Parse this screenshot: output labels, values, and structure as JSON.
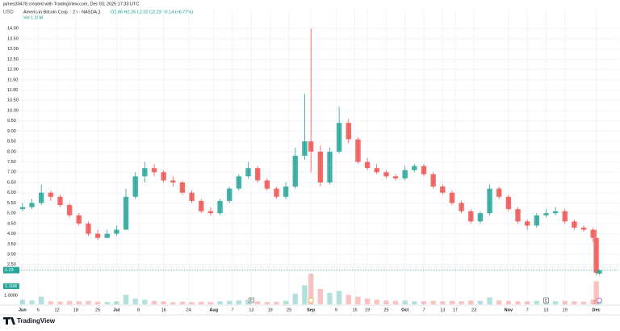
{
  "chart_data": {
    "type": "candlestick",
    "attribution": "james30478 created with TradingView.com, Dec 03, 2025 17:33 UTC",
    "title": "American Bitcoin Corp. · 2h · NASDAQ",
    "ohlc_legend": "O2.06 H2.26 L2.02 C2.23 +0.14 (+6.77%)",
    "volume_legend": "Vol 1.11M",
    "currency": "USD",
    "brand": "TradingView",
    "last_price_label": "2.23",
    "last_volume_label": "1.11M",
    "up_color": "#26a69a",
    "down_color": "#ef5350",
    "grid": true,
    "xlim": [
      -1,
      188
    ],
    "ylim": [
      1.9,
      14.6
    ],
    "vlim": [
      0,
      8
    ],
    "xticks": [
      {
        "value": 0,
        "label": "Jun"
      },
      {
        "value": 5,
        "label": "6"
      },
      {
        "value": 11,
        "label": "12"
      },
      {
        "value": 17,
        "label": "18"
      },
      {
        "value": 24,
        "label": "25"
      },
      {
        "value": 30,
        "label": "Jul"
      },
      {
        "value": 37,
        "label": "8"
      },
      {
        "value": 45,
        "label": "16"
      },
      {
        "value": 53,
        "label": "24"
      },
      {
        "value": 61,
        "label": "Aug"
      },
      {
        "value": 67,
        "label": "7"
      },
      {
        "value": 73,
        "label": "13"
      },
      {
        "value": 79,
        "label": "19"
      },
      {
        "value": 85,
        "label": "25"
      },
      {
        "value": 92,
        "label": "Sep"
      },
      {
        "value": 100,
        "label": "9"
      },
      {
        "value": 106,
        "label": "15"
      },
      {
        "value": 110,
        "label": "19"
      },
      {
        "value": 116,
        "label": "25"
      },
      {
        "value": 122,
        "label": "Oct"
      },
      {
        "value": 128,
        "label": "7"
      },
      {
        "value": 134,
        "label": "13"
      },
      {
        "value": 138,
        "label": "17"
      },
      {
        "value": 144,
        "label": "23"
      },
      {
        "value": 155,
        "label": "Nov"
      },
      {
        "value": 161,
        "label": "7"
      },
      {
        "value": 167,
        "label": "13"
      },
      {
        "value": 173,
        "label": "19"
      },
      {
        "value": 183,
        "label": "Dec"
      }
    ],
    "yticks": [
      {
        "value": 2.5,
        "label": "2.50"
      },
      {
        "value": 3,
        "label": "3.00"
      },
      {
        "value": 3.5,
        "label": "3.50"
      },
      {
        "value": 4,
        "label": "4.00"
      },
      {
        "value": 4.5,
        "label": "4.50"
      },
      {
        "value": 5,
        "label": "5.00"
      },
      {
        "value": 5.5,
        "label": "5.50"
      },
      {
        "value": 6,
        "label": "6.00"
      },
      {
        "value": 6.5,
        "label": "6.50"
      },
      {
        "value": 7,
        "label": "7.00"
      },
      {
        "value": 7.5,
        "label": "7.50"
      },
      {
        "value": 8,
        "label": "8.00"
      },
      {
        "value": 8.5,
        "label": "8.50"
      },
      {
        "value": 9,
        "label": "9.00"
      },
      {
        "value": 9.5,
        "label": "9.50"
      },
      {
        "value": 10,
        "label": "10.00"
      },
      {
        "value": 10.5,
        "label": "10.50"
      },
      {
        "value": 11,
        "label": "11.00"
      },
      {
        "value": 11.5,
        "label": "11.50"
      },
      {
        "value": 12,
        "label": "12.00"
      },
      {
        "value": 12.5,
        "label": "12.50"
      },
      {
        "value": 13,
        "label": "13.00"
      },
      {
        "value": 13.5,
        "label": "13.50"
      },
      {
        "value": 14,
        "label": "14.00"
      }
    ],
    "vticks": [
      {
        "value": 1,
        "label": "1.0000"
      }
    ],
    "events": [
      {
        "x": 73,
        "label": "E"
      },
      {
        "x": 167,
        "label": "E"
      }
    ],
    "x": [
      0,
      3,
      6,
      9,
      12,
      15,
      18,
      21,
      24,
      27,
      30,
      33,
      36,
      39,
      42,
      45,
      48,
      51,
      54,
      57,
      60,
      63,
      66,
      69,
      72,
      75,
      78,
      81,
      84,
      87,
      90,
      92,
      95,
      98,
      101,
      104,
      107,
      110,
      113,
      116,
      119,
      122,
      125,
      128,
      131,
      134,
      137,
      140,
      143,
      146,
      149,
      152,
      155,
      158,
      161,
      164,
      167,
      170,
      173,
      176,
      179,
      182,
      183,
      184
    ],
    "open": [
      5.2,
      5.3,
      5.5,
      6.0,
      5.8,
      5.4,
      4.9,
      4.5,
      4.0,
      3.8,
      4.0,
      4.2,
      5.8,
      6.8,
      7.2,
      7.0,
      6.6,
      6.5,
      6.0,
      5.6,
      5.1,
      5.0,
      5.6,
      6.2,
      6.8,
      7.2,
      6.6,
      6.2,
      5.8,
      6.3,
      7.8,
      8.5,
      8.0,
      6.5,
      8.0,
      9.4,
      8.6,
      7.5,
      7.2,
      7.0,
      6.8,
      6.7,
      7.1,
      7.3,
      6.9,
      6.3,
      6.0,
      5.5,
      5.1,
      4.6,
      5.0,
      6.2,
      5.8,
      5.2,
      4.6,
      4.4,
      4.9,
      5.0,
      5.1,
      4.6,
      4.3,
      4.2,
      3.8,
      2.06
    ],
    "high": [
      5.5,
      5.7,
      6.4,
      6.1,
      5.9,
      5.5,
      5.0,
      4.6,
      4.2,
      4.2,
      4.4,
      6.2,
      7.0,
      7.5,
      7.4,
      7.1,
      6.8,
      6.6,
      6.1,
      5.7,
      5.3,
      5.7,
      6.3,
      6.9,
      7.5,
      7.3,
      6.7,
      6.3,
      6.5,
      8.2,
      10.8,
      14.0,
      8.3,
      8.2,
      10.2,
      9.6,
      8.7,
      7.7,
      7.4,
      7.1,
      6.9,
      7.3,
      7.4,
      7.4,
      7.0,
      6.4,
      6.1,
      5.6,
      5.2,
      5.1,
      6.4,
      6.3,
      5.9,
      5.3,
      4.7,
      5.0,
      5.2,
      5.3,
      5.2,
      4.7,
      4.4,
      4.3,
      4.2,
      2.26
    ],
    "low": [
      5.1,
      5.2,
      5.4,
      5.6,
      5.3,
      4.8,
      4.4,
      3.9,
      3.7,
      3.8,
      3.9,
      4.2,
      5.7,
      6.5,
      6.8,
      6.5,
      6.3,
      5.9,
      5.5,
      5.0,
      4.9,
      4.9,
      5.5,
      6.1,
      6.7,
      6.5,
      6.1,
      5.7,
      5.7,
      6.2,
      7.6,
      7.0,
      6.3,
      6.4,
      7.9,
      8.4,
      7.4,
      7.1,
      6.9,
      6.7,
      6.6,
      6.6,
      7.0,
      6.8,
      6.2,
      5.9,
      5.4,
      5.0,
      4.5,
      4.5,
      4.9,
      5.7,
      5.1,
      4.5,
      4.2,
      4.3,
      4.8,
      4.9,
      4.5,
      4.2,
      4.1,
      3.6,
      2.0,
      2.02
    ],
    "close": [
      5.3,
      5.5,
      6.0,
      5.8,
      5.4,
      4.9,
      4.5,
      4.0,
      3.8,
      4.0,
      4.2,
      5.8,
      6.8,
      7.2,
      7.0,
      6.6,
      6.5,
      6.0,
      5.6,
      5.1,
      5.0,
      5.6,
      6.2,
      6.8,
      7.2,
      6.6,
      6.2,
      5.8,
      6.3,
      7.8,
      8.5,
      8.0,
      6.5,
      8.0,
      9.4,
      8.6,
      7.5,
      7.2,
      7.0,
      6.8,
      6.7,
      7.1,
      7.3,
      6.9,
      6.3,
      6.0,
      5.5,
      5.1,
      4.6,
      5.0,
      6.2,
      5.8,
      5.2,
      4.6,
      4.4,
      4.9,
      5.0,
      5.1,
      4.6,
      4.3,
      4.2,
      3.8,
      2.1,
      2.23
    ],
    "volume": [
      1.2,
      1.0,
      2.0,
      0.8,
      0.7,
      0.9,
      0.8,
      0.9,
      0.7,
      0.6,
      0.8,
      2.5,
      1.5,
      1.2,
      0.9,
      0.8,
      0.6,
      0.7,
      0.6,
      0.7,
      0.6,
      0.8,
      0.9,
      1.0,
      1.2,
      0.8,
      0.6,
      0.7,
      0.9,
      2.8,
      5.0,
      8.0,
      4.0,
      3.0,
      3.5,
      2.5,
      2.0,
      1.5,
      1.2,
      1.0,
      0.9,
      1.0,
      0.8,
      0.8,
      0.9,
      0.8,
      0.9,
      0.8,
      1.0,
      0.9,
      1.8,
      1.0,
      0.9,
      0.8,
      0.8,
      0.9,
      0.7,
      0.8,
      0.9,
      0.8,
      0.7,
      1.2,
      6.0,
      1.11
    ]
  }
}
